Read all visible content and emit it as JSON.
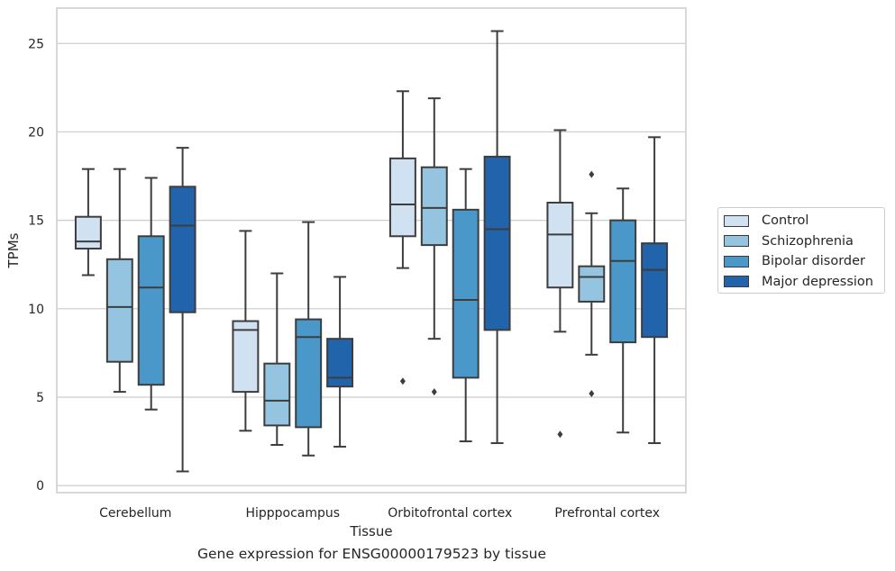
{
  "chart_data": {
    "type": "box",
    "title": "",
    "xlabel": "Tissue",
    "ylabel": "TPMs",
    "caption": "Gene expression for ENSG00000179523 by tissue",
    "ylim": [
      -0.4,
      27
    ],
    "yticks": [
      0,
      5,
      10,
      15,
      20,
      25
    ],
    "grid": "horizontal",
    "legend_position": "right",
    "categories": [
      "Cerebellum",
      "Hipppocampus",
      "Orbitofrontal cortex",
      "Prefrontal cortex"
    ],
    "series": [
      {
        "name": "Control",
        "color": "#d0e1f2",
        "boxes": [
          {
            "whislo": 11.9,
            "q1": 13.4,
            "med": 13.8,
            "q3": 15.2,
            "whishi": 17.9,
            "fliers": []
          },
          {
            "whislo": 3.1,
            "q1": 5.3,
            "med": 8.8,
            "q3": 9.3,
            "whishi": 14.4,
            "fliers": []
          },
          {
            "whislo": 12.3,
            "q1": 14.1,
            "med": 15.9,
            "q3": 18.5,
            "whishi": 22.3,
            "fliers": [
              5.9
            ]
          },
          {
            "whislo": 8.7,
            "q1": 11.2,
            "med": 14.2,
            "q3": 16.0,
            "whishi": 20.1,
            "fliers": [
              2.9
            ]
          }
        ]
      },
      {
        "name": "Schizophrenia",
        "color": "#94c4df",
        "boxes": [
          {
            "whislo": 5.3,
            "q1": 7.0,
            "med": 10.1,
            "q3": 12.8,
            "whishi": 17.9,
            "fliers": []
          },
          {
            "whislo": 2.3,
            "q1": 3.4,
            "med": 4.8,
            "q3": 6.9,
            "whishi": 12.0,
            "fliers": []
          },
          {
            "whislo": 8.3,
            "q1": 13.6,
            "med": 15.7,
            "q3": 18.0,
            "whishi": 21.9,
            "fliers": [
              5.3
            ]
          },
          {
            "whislo": 7.4,
            "q1": 10.4,
            "med": 11.8,
            "q3": 12.4,
            "whishi": 15.4,
            "fliers": [
              5.2,
              17.6
            ]
          }
        ]
      },
      {
        "name": "Bipolar disorder",
        "color": "#4a98c9",
        "boxes": [
          {
            "whislo": 4.3,
            "q1": 5.7,
            "med": 11.2,
            "q3": 14.1,
            "whishi": 17.4,
            "fliers": []
          },
          {
            "whislo": 1.7,
            "q1": 3.3,
            "med": 8.4,
            "q3": 9.4,
            "whishi": 14.9,
            "fliers": []
          },
          {
            "whislo": 2.5,
            "q1": 6.1,
            "med": 10.5,
            "q3": 15.6,
            "whishi": 17.9,
            "fliers": []
          },
          {
            "whislo": 3.0,
            "q1": 8.1,
            "med": 12.7,
            "q3": 15.0,
            "whishi": 16.8,
            "fliers": []
          }
        ]
      },
      {
        "name": "Major depression",
        "color": "#2164ab",
        "boxes": [
          {
            "whislo": 0.8,
            "q1": 9.8,
            "med": 14.7,
            "q3": 16.9,
            "whishi": 19.1,
            "fliers": []
          },
          {
            "whislo": 2.2,
            "q1": 5.6,
            "med": 6.1,
            "q3": 8.3,
            "whishi": 11.8,
            "fliers": []
          },
          {
            "whislo": 2.4,
            "q1": 8.8,
            "med": 14.5,
            "q3": 18.6,
            "whishi": 25.7,
            "fliers": []
          },
          {
            "whislo": 2.4,
            "q1": 8.4,
            "med": 12.2,
            "q3": 13.7,
            "whishi": 19.7,
            "fliers": []
          }
        ]
      }
    ]
  }
}
